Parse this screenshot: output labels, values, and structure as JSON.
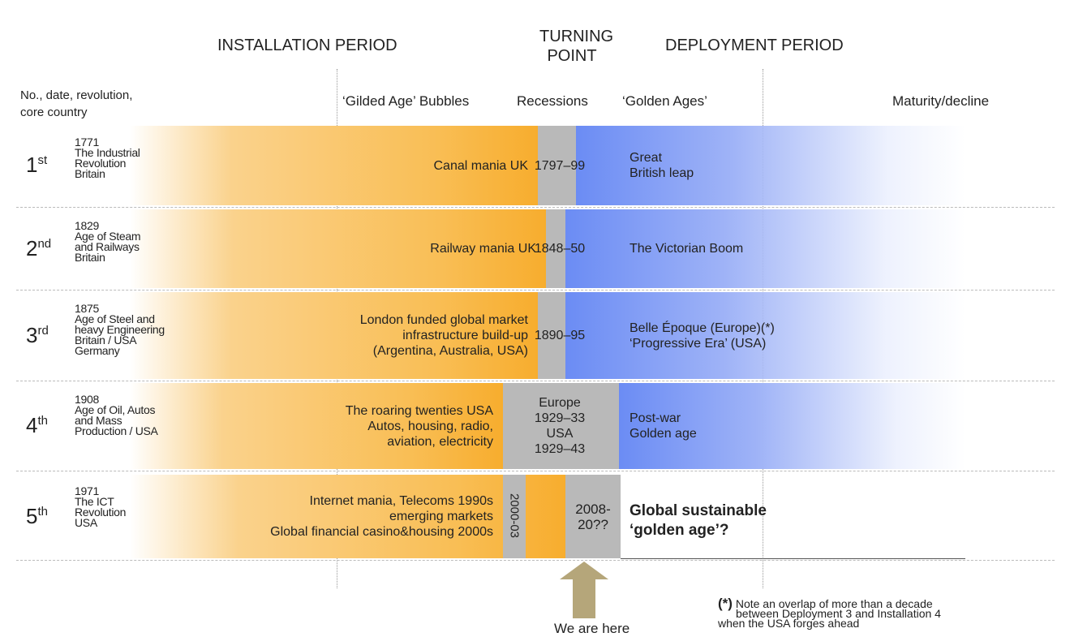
{
  "headers": {
    "installation": "INSTALLATION PERIOD",
    "turning": [
      "TURNING",
      "POINT"
    ],
    "deployment": "DEPLOYMENT PERIOD"
  },
  "columns": {
    "left": [
      "No., date, revolution,",
      "core country"
    ],
    "bubbles": "‘Gilded Age’ Bubbles",
    "recessions": "Recessions",
    "golden": "‘Golden Ages’",
    "maturity": "Maturity/decline"
  },
  "rows": [
    {
      "number": "1",
      "suffix": "st",
      "details": [
        "1771",
        "The Industrial",
        "Revolution",
        "Britain"
      ],
      "bubble": [
        "Canal mania UK"
      ],
      "recession": [
        "1797–99"
      ],
      "golden": [
        "Great",
        "British leap"
      ]
    },
    {
      "number": "2",
      "suffix": "nd",
      "details": [
        "1829",
        "Age of Steam",
        "and Railways",
        "Britain"
      ],
      "bubble": [
        "Railway mania UK"
      ],
      "recession": [
        "1848–50"
      ],
      "golden": [
        "The Victorian Boom"
      ]
    },
    {
      "number": "3",
      "suffix": "rd",
      "details": [
        "1875",
        "Age of Steel and",
        "heavy Engineering",
        "Britain / USA",
        "Germany"
      ],
      "bubble": [
        "London funded global market",
        "infrastructure build-up",
        "(Argentina, Australia, USA)"
      ],
      "recession": [
        "1890–95"
      ],
      "golden": [
        "Belle Époque (Europe)(*)",
        "‘Progressive Era’ (USA)"
      ]
    },
    {
      "number": "4",
      "suffix": "th",
      "details": [
        "1908",
        "Age of Oil, Autos",
        "and Mass",
        "Production / USA"
      ],
      "bubble": [
        "The roaring twenties USA",
        "Autos, housing, radio,",
        "aviation, electricity"
      ],
      "recession": [
        "Europe",
        "1929–33",
        "USA",
        "1929–43"
      ],
      "golden": [
        "Post-war",
        "Golden age"
      ]
    },
    {
      "number": "5",
      "suffix": "th",
      "details": [
        "1971",
        "The ICT",
        "Revolution",
        "USA"
      ],
      "bubble": [
        "Internet mania, Telecoms 1990s",
        "emerging markets",
        "Global financial casino&housing 2000s"
      ],
      "recession_early": "2000-03",
      "recession": [
        "2008-",
        "20??"
      ],
      "golden": [
        "Global sustainable",
        "‘golden age’?"
      ]
    }
  ],
  "marker": "We are here",
  "note": [
    "(*)",
    "Note an overlap of more than a decade",
    "between Deployment 3 and Installation 4",
    "when the USA forges ahead"
  ]
}
